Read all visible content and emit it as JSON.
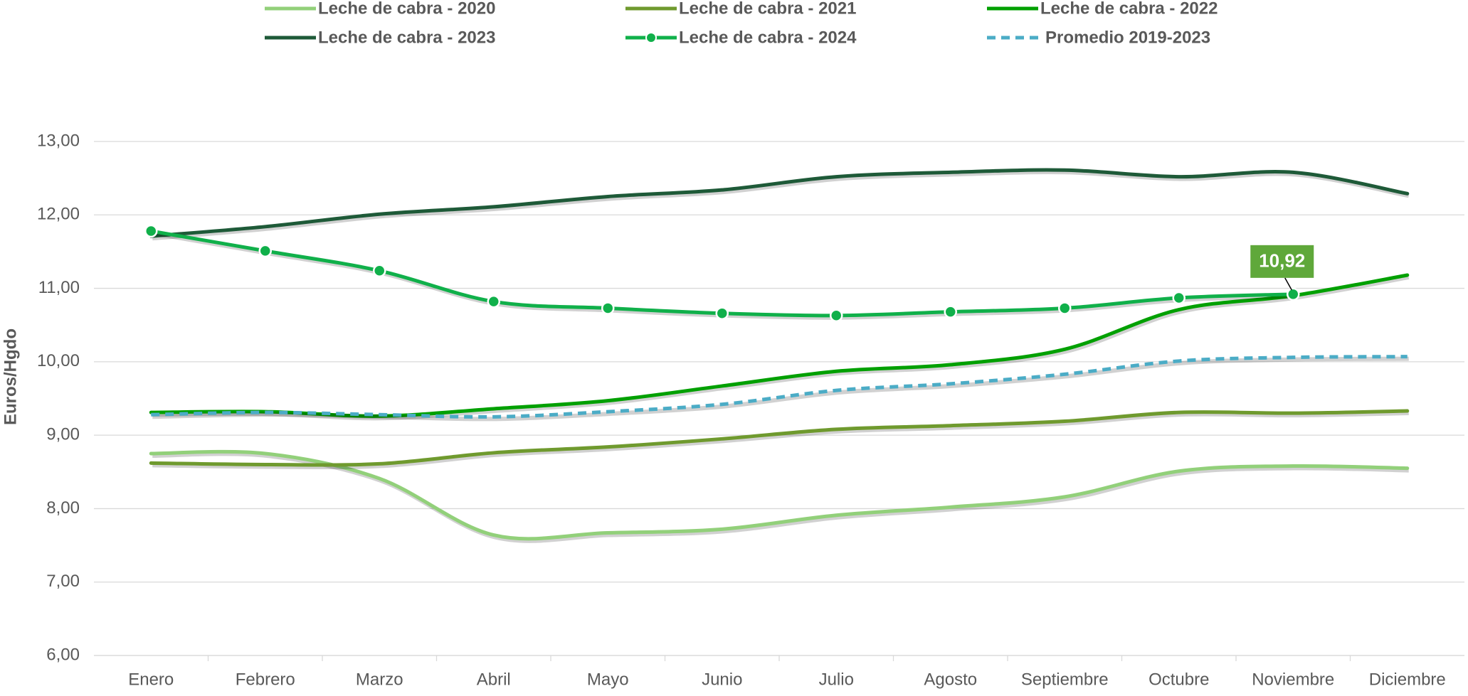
{
  "chart_data": {
    "type": "line",
    "categories": [
      "Enero",
      "Febrero",
      "Marzo",
      "Abril",
      "Mayo",
      "Junio",
      "Julio",
      "Agosto",
      "Septiembre",
      "Octubre",
      "Noviembre",
      "Diciembre"
    ],
    "y_label": "Euros/Hgdo",
    "ylim": [
      6,
      13
    ],
    "yticks": [
      {
        "value": 6,
        "label": "6,00"
      },
      {
        "value": 7,
        "label": "7,00"
      },
      {
        "value": 8,
        "label": "8,00"
      },
      {
        "value": 9,
        "label": "9,00"
      },
      {
        "value": 10,
        "label": "10,00"
      },
      {
        "value": 11,
        "label": "11,00"
      },
      {
        "value": 12,
        "label": "12,00"
      },
      {
        "value": 13,
        "label": "13,00"
      }
    ],
    "grid": true,
    "legend": "top",
    "series": [
      {
        "name": "Leche de cabra - 2020",
        "color": "#92d07a",
        "values": [
          8.75,
          8.75,
          8.41,
          7.64,
          7.67,
          7.72,
          7.91,
          8.02,
          8.16,
          8.51,
          8.58,
          8.55
        ]
      },
      {
        "name": "Leche de cabra - 2021",
        "color": "#6f9a2e",
        "values": [
          8.62,
          8.6,
          8.61,
          8.76,
          8.84,
          8.95,
          9.08,
          9.13,
          9.19,
          9.31,
          9.3,
          9.33
        ]
      },
      {
        "name": "Leche de cabra - 2022",
        "color": "#00a000",
        "values": [
          9.31,
          9.32,
          9.26,
          9.36,
          9.47,
          9.67,
          9.87,
          9.96,
          10.17,
          10.71,
          10.9,
          11.18
        ]
      },
      {
        "name": "Leche de cabra - 2023",
        "color": "#1e5a38",
        "values": [
          11.71,
          11.84,
          12.01,
          12.11,
          12.25,
          12.34,
          12.52,
          12.58,
          12.61,
          12.52,
          12.58,
          12.29
        ]
      },
      {
        "name": "Leche de cabra - 2024",
        "color": "#10b04a",
        "marker": true,
        "values": [
          11.78,
          11.51,
          11.24,
          10.82,
          10.73,
          10.66,
          10.63,
          10.68,
          10.73,
          10.87,
          10.92,
          null
        ],
        "value_labels": [
          null,
          null,
          null,
          null,
          null,
          null,
          null,
          null,
          null,
          null,
          "10,92",
          null
        ]
      },
      {
        "name": "Promedio 2019-2023",
        "color": "#4bacc6",
        "linestyle": "dashed",
        "values": [
          9.28,
          9.31,
          9.28,
          9.25,
          9.32,
          9.42,
          9.61,
          9.7,
          9.83,
          10.01,
          10.06,
          10.07
        ]
      }
    ]
  }
}
